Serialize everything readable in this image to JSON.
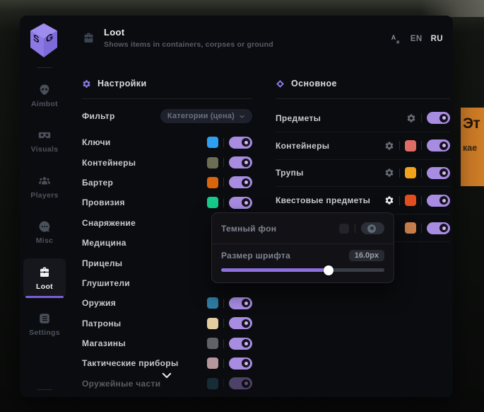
{
  "window": {
    "title": "Loot",
    "subtitle": "Shows items in containers, corpses or ground"
  },
  "language_switch": {
    "options": [
      "EN",
      "RU"
    ],
    "selected": "RU"
  },
  "sidebar": {
    "items": [
      {
        "label": "Aimbot",
        "icon": "alien",
        "active": false
      },
      {
        "label": "Visuals",
        "icon": "goggles",
        "active": false
      },
      {
        "label": "Players",
        "icon": "players",
        "active": false
      },
      {
        "label": "Misc",
        "icon": "chat",
        "active": false
      },
      {
        "label": "Loot",
        "icon": "briefcase",
        "active": true
      },
      {
        "label": "Settings",
        "icon": "list",
        "active": false
      }
    ]
  },
  "filters_section": {
    "title": "Настройки",
    "filter_label": "Фильтр",
    "filter_value": "Категории (цена)",
    "items": [
      {
        "label": "Ключи",
        "color": "#2f9ff2",
        "enabled": true
      },
      {
        "label": "Контейнеры",
        "color": "#6b6e55",
        "enabled": true
      },
      {
        "label": "Бартер",
        "color": "#d9650e",
        "enabled": true
      },
      {
        "label": "Провизия",
        "color": "#17c98b",
        "enabled": true
      },
      {
        "label": "Снаряжение",
        "color": null,
        "enabled": null,
        "controls_visible": false
      },
      {
        "label": "Медицина",
        "color": null,
        "enabled": null,
        "controls_visible": false
      },
      {
        "label": "Прицелы",
        "color": null,
        "enabled": null,
        "controls_visible": false
      },
      {
        "label": "Глушители",
        "color": null,
        "enabled": null,
        "controls_visible": false
      },
      {
        "label": "Оружия",
        "color": "#2e7ca3",
        "enabled": true
      },
      {
        "label": "Патроны",
        "color": "#e3cda1",
        "enabled": true
      },
      {
        "label": "Магазины",
        "color": "#606267",
        "enabled": true
      },
      {
        "label": "Тактические приборы",
        "color": "#b5969d",
        "enabled": true
      },
      {
        "label": "Оружейные части",
        "color": "#2a5a6e",
        "enabled": true,
        "faded": true
      }
    ]
  },
  "main_section": {
    "title": "Основное",
    "items": [
      {
        "label": "Предметы",
        "color": null,
        "enabled": true,
        "has_gear": true,
        "gear_active": false
      },
      {
        "label": "Контейнеры",
        "color": "#e06c66",
        "enabled": true,
        "has_gear": true,
        "gear_active": false
      },
      {
        "label": "Трупы",
        "color": "#f2a31c",
        "enabled": true,
        "has_gear": true,
        "gear_active": false
      },
      {
        "label": "Квестовые предметы",
        "color": "#e34e1f",
        "enabled": true,
        "has_gear": true,
        "gear_active": true
      },
      {
        "label": "",
        "color": "#c97f4e",
        "enabled": true,
        "has_gear": false,
        "gear_active": false
      }
    ]
  },
  "popup": {
    "dark_bg_label": "Темный фон",
    "dark_bg_enabled": false,
    "font_size_label": "Размер шрифта",
    "font_size_value": "16.0px",
    "slider_percent": 66
  },
  "background_tooltip": {
    "line1": "Эт",
    "line2": "кае",
    "color": "#cf7d27"
  },
  "colors": {
    "accent": "#8d79e6",
    "toggle_on": "#a78ce1",
    "panel_bg": "#0b0c0f"
  }
}
